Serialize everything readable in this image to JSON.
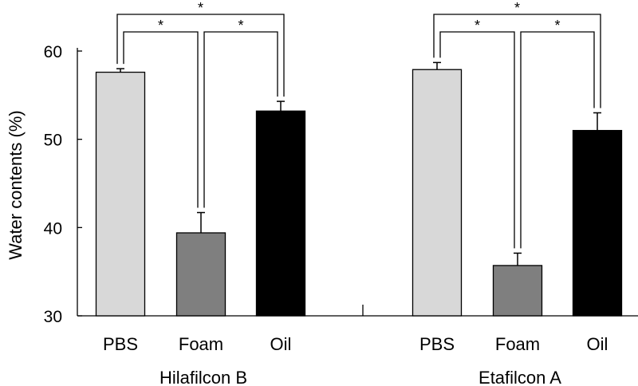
{
  "chart_data": {
    "type": "bar",
    "ylabel": "Water contents (%)",
    "ylim": [
      30,
      60
    ],
    "yticks": [
      30,
      40,
      50,
      60
    ],
    "grid": false,
    "groups": [
      {
        "name": "Hilafilcon B",
        "categories": [
          "PBS",
          "Foam",
          "Oil"
        ],
        "values": [
          57.6,
          39.4,
          53.2
        ],
        "errors": [
          0.4,
          2.3,
          1.1
        ],
        "significance": [
          {
            "from": "PBS",
            "to": "Foam",
            "label": "*"
          },
          {
            "from": "Foam",
            "to": "Oil",
            "label": "*"
          },
          {
            "from": "PBS",
            "to": "Oil",
            "label": "*"
          }
        ]
      },
      {
        "name": "Etafilcon A",
        "categories": [
          "PBS",
          "Foam",
          "Oil"
        ],
        "values": [
          57.9,
          35.7,
          51.0
        ],
        "errors": [
          0.8,
          1.4,
          2.0
        ],
        "significance": [
          {
            "from": "PBS",
            "to": "Foam",
            "label": "*"
          },
          {
            "from": "Foam",
            "to": "Oil",
            "label": "*"
          },
          {
            "from": "PBS",
            "to": "Oil",
            "label": "*"
          }
        ]
      }
    ],
    "colors": {
      "PBS": "#d8d8d8",
      "Foam": "#7f7f7f",
      "Oil": "#000000"
    }
  }
}
